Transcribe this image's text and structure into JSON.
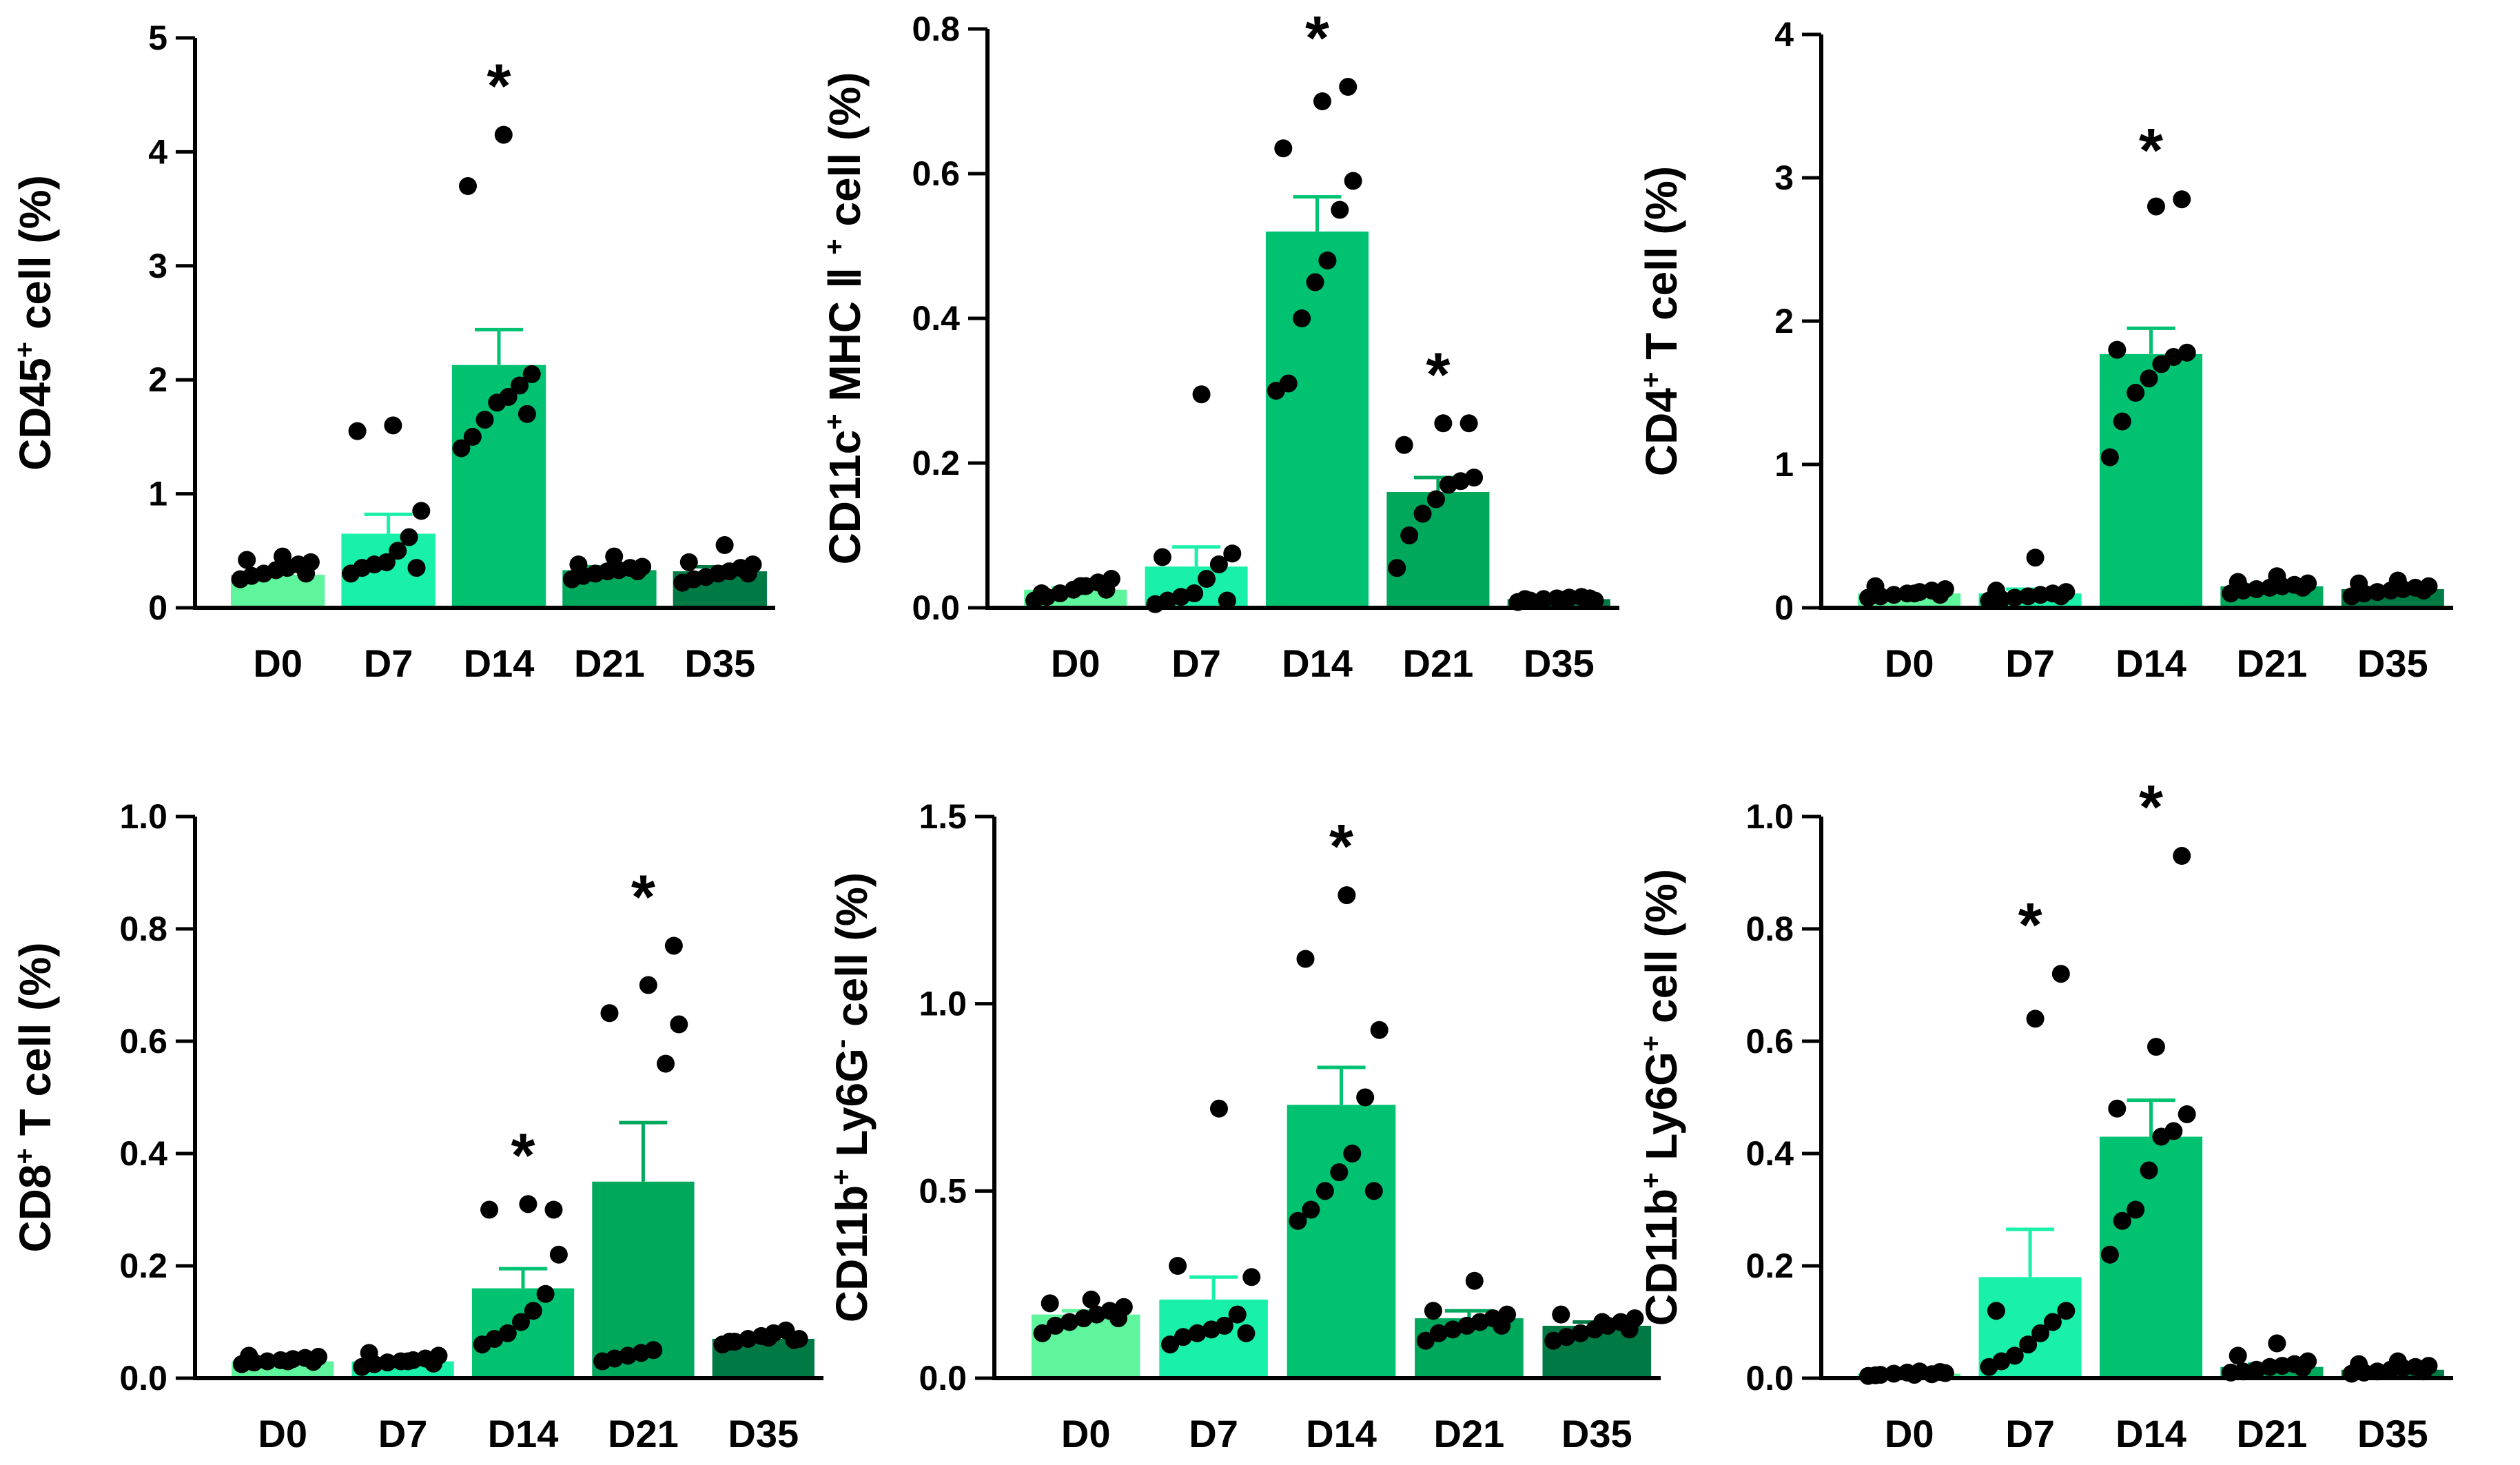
{
  "chart_data": [
    {
      "type": "bar",
      "ylabel": {
        "main": "CD45",
        "sup": "+",
        "rest": " cell (%)"
      },
      "categories": [
        "D0",
        "D7",
        "D14",
        "D21",
        "D35"
      ],
      "values": [
        0.29,
        0.65,
        2.13,
        0.33,
        0.32
      ],
      "errors": [
        0.03,
        0.17,
        0.31,
        0.03,
        0.04
      ],
      "points": [
        [
          0.25,
          0.28,
          0.3,
          0.33,
          0.35,
          0.38,
          0.4,
          0.42,
          0.45,
          0.3
        ],
        [
          0.3,
          0.35,
          0.38,
          0.4,
          0.5,
          0.62,
          0.85,
          1.55,
          1.6,
          0.35
        ],
        [
          1.4,
          1.5,
          1.65,
          1.8,
          1.85,
          1.95,
          2.05,
          3.7,
          4.15,
          1.7
        ],
        [
          0.25,
          0.28,
          0.3,
          0.32,
          0.33,
          0.35,
          0.36,
          0.38,
          0.45,
          0.32
        ],
        [
          0.22,
          0.25,
          0.27,
          0.3,
          0.32,
          0.35,
          0.38,
          0.4,
          0.55,
          0.3
        ]
      ],
      "significance": [
        "",
        "",
        "*",
        "",
        ""
      ],
      "ylim": [
        0,
        5
      ],
      "yticks": [
        "0",
        "1",
        "2",
        "3",
        "4",
        "5"
      ],
      "colors": [
        "#5ff59c",
        "#19f0aa",
        "#00c271",
        "#00a85c",
        "#007a45"
      ]
    },
    {
      "type": "bar",
      "ylabel": {
        "main": "CD11c",
        "sup": "+",
        "rest": " MHC Ⅱ ",
        "sup2": "+",
        "rest2": " cell (%)"
      },
      "categories": [
        "D0",
        "D7",
        "D14",
        "D21",
        "D35"
      ],
      "values": [
        0.025,
        0.057,
        0.52,
        0.16,
        0.012
      ],
      "errors": [
        0.003,
        0.027,
        0.048,
        0.02,
        0.002
      ],
      "points": [
        [
          0.01,
          0.015,
          0.02,
          0.025,
          0.03,
          0.035,
          0.04,
          0.02,
          0.03,
          0.025
        ],
        [
          0.005,
          0.01,
          0.015,
          0.02,
          0.04,
          0.06,
          0.075,
          0.07,
          0.295,
          0.01
        ],
        [
          0.3,
          0.31,
          0.4,
          0.45,
          0.48,
          0.55,
          0.59,
          0.635,
          0.7,
          0.72
        ],
        [
          0.055,
          0.1,
          0.13,
          0.15,
          0.17,
          0.175,
          0.18,
          0.225,
          0.255,
          0.255
        ],
        [
          0.008,
          0.01,
          0.012,
          0.013,
          0.014,
          0.015,
          0.01,
          0.012,
          0.011,
          0.013
        ]
      ],
      "significance": [
        "",
        "",
        "*",
        "*",
        ""
      ],
      "ylim": [
        0,
        0.8
      ],
      "yticks": [
        "0.0",
        "0.2",
        "0.4",
        "0.6",
        "0.8"
      ],
      "colors": [
        "#5ff59c",
        "#19f0aa",
        "#00c271",
        "#00a85c",
        "#007a45"
      ]
    },
    {
      "type": "bar",
      "ylabel": {
        "main": "CD4",
        "sup": "+",
        "rest": " T cell (%)"
      },
      "categories": [
        "D0",
        "D7",
        "D14",
        "D21",
        "D35"
      ],
      "values": [
        0.1,
        0.1,
        1.77,
        0.15,
        0.13
      ],
      "errors": [
        0.01,
        0.03,
        0.18,
        0.01,
        0.01
      ],
      "points": [
        [
          0.07,
          0.08,
          0.09,
          0.1,
          0.11,
          0.12,
          0.13,
          0.15,
          0.1,
          0.09
        ],
        [
          0.05,
          0.06,
          0.07,
          0.08,
          0.09,
          0.1,
          0.11,
          0.12,
          0.35,
          0.08
        ],
        [
          1.05,
          1.3,
          1.5,
          1.6,
          1.7,
          1.75,
          1.78,
          1.8,
          2.8,
          2.85
        ],
        [
          0.1,
          0.12,
          0.13,
          0.14,
          0.15,
          0.16,
          0.17,
          0.18,
          0.22,
          0.14
        ],
        [
          0.08,
          0.1,
          0.11,
          0.12,
          0.13,
          0.14,
          0.15,
          0.17,
          0.19,
          0.12
        ]
      ],
      "significance": [
        "",
        "",
        "*",
        "",
        ""
      ],
      "ylim": [
        0,
        4
      ],
      "yticks": [
        "0",
        "1",
        "2",
        "3",
        "4"
      ],
      "colors": [
        "#5ff59c",
        "#19f0aa",
        "#00c271",
        "#00a85c",
        "#007a45"
      ]
    },
    {
      "type": "bar",
      "ylabel": {
        "main": "CD8",
        "sup": "+",
        "rest": " T cell (%)"
      },
      "categories": [
        "D0",
        "D7",
        "D14",
        "D21",
        "D35"
      ],
      "values": [
        0.03,
        0.03,
        0.16,
        0.35,
        0.07
      ],
      "errors": [
        0.003,
        0.004,
        0.035,
        0.105,
        0.005
      ],
      "points": [
        [
          0.025,
          0.028,
          0.03,
          0.032,
          0.034,
          0.036,
          0.038,
          0.04,
          0.03,
          0.029
        ],
        [
          0.02,
          0.025,
          0.028,
          0.03,
          0.032,
          0.035,
          0.04,
          0.045,
          0.03,
          0.026
        ],
        [
          0.06,
          0.07,
          0.08,
          0.1,
          0.12,
          0.15,
          0.22,
          0.3,
          0.31,
          0.3
        ],
        [
          0.03,
          0.035,
          0.04,
          0.045,
          0.05,
          0.56,
          0.63,
          0.65,
          0.7,
          0.77
        ],
        [
          0.06,
          0.065,
          0.07,
          0.075,
          0.08,
          0.085,
          0.07,
          0.065,
          0.072,
          0.068
        ]
      ],
      "significance": [
        "",
        "",
        "*",
        "*",
        ""
      ],
      "ylim": [
        0,
        1.0
      ],
      "yticks": [
        "0.0",
        "0.2",
        "0.4",
        "0.6",
        "0.8",
        "1.0"
      ],
      "colors": [
        "#5ff59c",
        "#19f0aa",
        "#00c271",
        "#00a85c",
        "#007a45"
      ]
    },
    {
      "type": "bar",
      "ylabel": {
        "main": "CD11b",
        "sup": "+",
        "rest": " Ly6G",
        "sup2": "-",
        "rest2": " cell (%)"
      },
      "categories": [
        "D0",
        "D7",
        "D14",
        "D21",
        "D35"
      ],
      "values": [
        0.17,
        0.21,
        0.73,
        0.16,
        0.14
      ],
      "errors": [
        0.01,
        0.06,
        0.1,
        0.02,
        0.01
      ],
      "points": [
        [
          0.12,
          0.14,
          0.15,
          0.16,
          0.17,
          0.18,
          0.19,
          0.2,
          0.21,
          0.16
        ],
        [
          0.09,
          0.11,
          0.12,
          0.13,
          0.14,
          0.17,
          0.27,
          0.3,
          0.72,
          0.12
        ],
        [
          0.42,
          0.45,
          0.5,
          0.55,
          0.6,
          0.75,
          0.93,
          1.12,
          1.29,
          0.5
        ],
        [
          0.1,
          0.12,
          0.13,
          0.14,
          0.15,
          0.16,
          0.17,
          0.18,
          0.26,
          0.14
        ],
        [
          0.1,
          0.11,
          0.12,
          0.13,
          0.14,
          0.15,
          0.16,
          0.17,
          0.15,
          0.13
        ]
      ],
      "significance": [
        "",
        "",
        "*",
        "",
        ""
      ],
      "ylim": [
        0,
        1.5
      ],
      "yticks": [
        "0.0",
        "0.5",
        "1.0",
        "1.5"
      ],
      "colors": [
        "#5ff59c",
        "#19f0aa",
        "#00c271",
        "#00a85c",
        "#007a45"
      ]
    },
    {
      "type": "bar",
      "ylabel": {
        "main": "CD11b",
        "sup": "+",
        "rest": " Ly6G",
        "sup2": "+",
        "rest2": " cell (%)"
      },
      "categories": [
        "D0",
        "D7",
        "D14",
        "D21",
        "D35"
      ],
      "values": [
        0.008,
        0.18,
        0.43,
        0.02,
        0.015
      ],
      "errors": [
        0.001,
        0.085,
        0.065,
        0.005,
        0.002
      ],
      "points": [
        [
          0.004,
          0.006,
          0.008,
          0.01,
          0.012,
          0.007,
          0.009,
          0.005,
          0.006,
          0.011
        ],
        [
          0.02,
          0.03,
          0.04,
          0.06,
          0.08,
          0.1,
          0.12,
          0.12,
          0.64,
          0.72
        ],
        [
          0.22,
          0.28,
          0.3,
          0.37,
          0.43,
          0.44,
          0.47,
          0.48,
          0.59,
          0.93
        ],
        [
          0.01,
          0.012,
          0.015,
          0.02,
          0.022,
          0.025,
          0.03,
          0.04,
          0.062,
          0.018
        ],
        [
          0.008,
          0.01,
          0.012,
          0.015,
          0.018,
          0.02,
          0.022,
          0.025,
          0.03,
          0.012
        ]
      ],
      "significance": [
        "",
        "*",
        "*",
        "",
        ""
      ],
      "ylim": [
        0,
        1.0
      ],
      "yticks": [
        "0.0",
        "0.2",
        "0.4",
        "0.6",
        "0.8",
        "1.0"
      ],
      "colors": [
        "#5ff59c",
        "#19f0aa",
        "#00c271",
        "#00a85c",
        "#007a45"
      ]
    }
  ]
}
